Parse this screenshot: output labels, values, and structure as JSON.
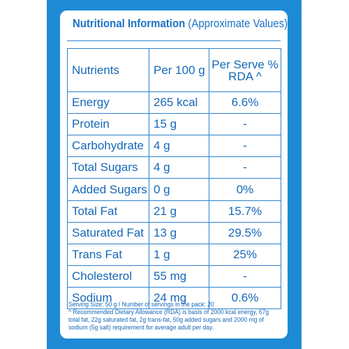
{
  "label": {
    "title_bold": "Nutritional Information",
    "title_rest": "(Approximate Values)",
    "columns": [
      "Nutrients",
      "Per 100 g",
      "Per Serve %",
      "RDA ^"
    ],
    "rows": [
      {
        "nutrient": "Energy",
        "per100": "265 kcal",
        "rda": "6.6%"
      },
      {
        "nutrient": "Protein",
        "per100": "15 g",
        "rda": "-"
      },
      {
        "nutrient": "Carbohydrate",
        "per100": "4 g",
        "rda": "-"
      },
      {
        "nutrient": "Total Sugars",
        "per100": "4 g",
        "rda": "-"
      },
      {
        "nutrient": "Added Sugars",
        "per100": "0 g",
        "rda": "0%"
      },
      {
        "nutrient": "Total Fat",
        "per100": "21 g",
        "rda": "15.7%"
      },
      {
        "nutrient": "Saturated Fat",
        "per100": "13 g",
        "rda": "29.5%"
      },
      {
        "nutrient": "Trans Fat",
        "per100": "1 g",
        "rda": "25%"
      },
      {
        "nutrient": "Cholesterol",
        "per100": "55 mg",
        "rda": "-"
      },
      {
        "nutrient": "Sodium",
        "per100": "24 mg",
        "rda": "0.6%"
      }
    ],
    "footnote_serving": "Serving Size: 50 g I Number of servings in the pack: 20",
    "footnote_rda": "^ Recommended Dietary Allowance (RDA) is basis of 2000 kcal energy, 67g total fat, 22g saturated fat, 2g trans-fat, 50g added sugars and 2000 mg of sodium (5g salt) requirement for average adult per day."
  },
  "colors": {
    "panel_blue": "#1e8ad6",
    "text_blue": "#1668b8",
    "line_blue": "#2d82cc"
  }
}
